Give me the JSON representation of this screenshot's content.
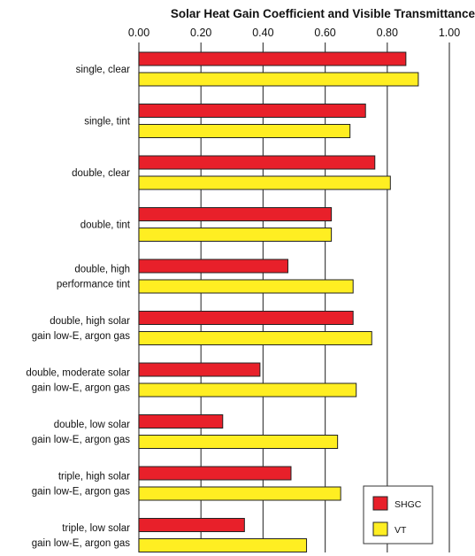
{
  "chart_data": {
    "type": "bar",
    "orientation": "horizontal",
    "title": "Solar Heat Gain Coefficient and Visible Transmittance",
    "xlabel": "",
    "ylabel": "",
    "xlim": [
      0,
      1.0
    ],
    "x_ticks": [
      "0.00",
      "0.20",
      "0.40",
      "0.60",
      "0.80",
      "1.00"
    ],
    "x_tick_values": [
      0,
      0.2,
      0.4,
      0.6,
      0.8,
      1.0
    ],
    "grid": true,
    "legend_position": "bottom-right",
    "categories": [
      [
        "single, clear"
      ],
      [
        "single, tint"
      ],
      [
        "double, clear"
      ],
      [
        "double, tint"
      ],
      [
        "double, high",
        "performance tint"
      ],
      [
        "double, high solar",
        "gain low-E, argon gas"
      ],
      [
        "double, moderate solar",
        "gain low-E, argon gas"
      ],
      [
        "double, low solar",
        "gain low-E, argon gas"
      ],
      [
        "triple, high solar",
        "gain low-E, argon gas"
      ],
      [
        "triple, low solar",
        "gain low-E, argon gas"
      ]
    ],
    "series": [
      {
        "name": "SHGC",
        "color": "#e8202a",
        "values": [
          0.86,
          0.73,
          0.76,
          0.62,
          0.48,
          0.69,
          0.39,
          0.27,
          0.49,
          0.34
        ]
      },
      {
        "name": "VT",
        "color": "#ffee22",
        "values": [
          0.9,
          0.68,
          0.81,
          0.62,
          0.69,
          0.75,
          0.7,
          0.64,
          0.65,
          0.54
        ]
      }
    ]
  }
}
